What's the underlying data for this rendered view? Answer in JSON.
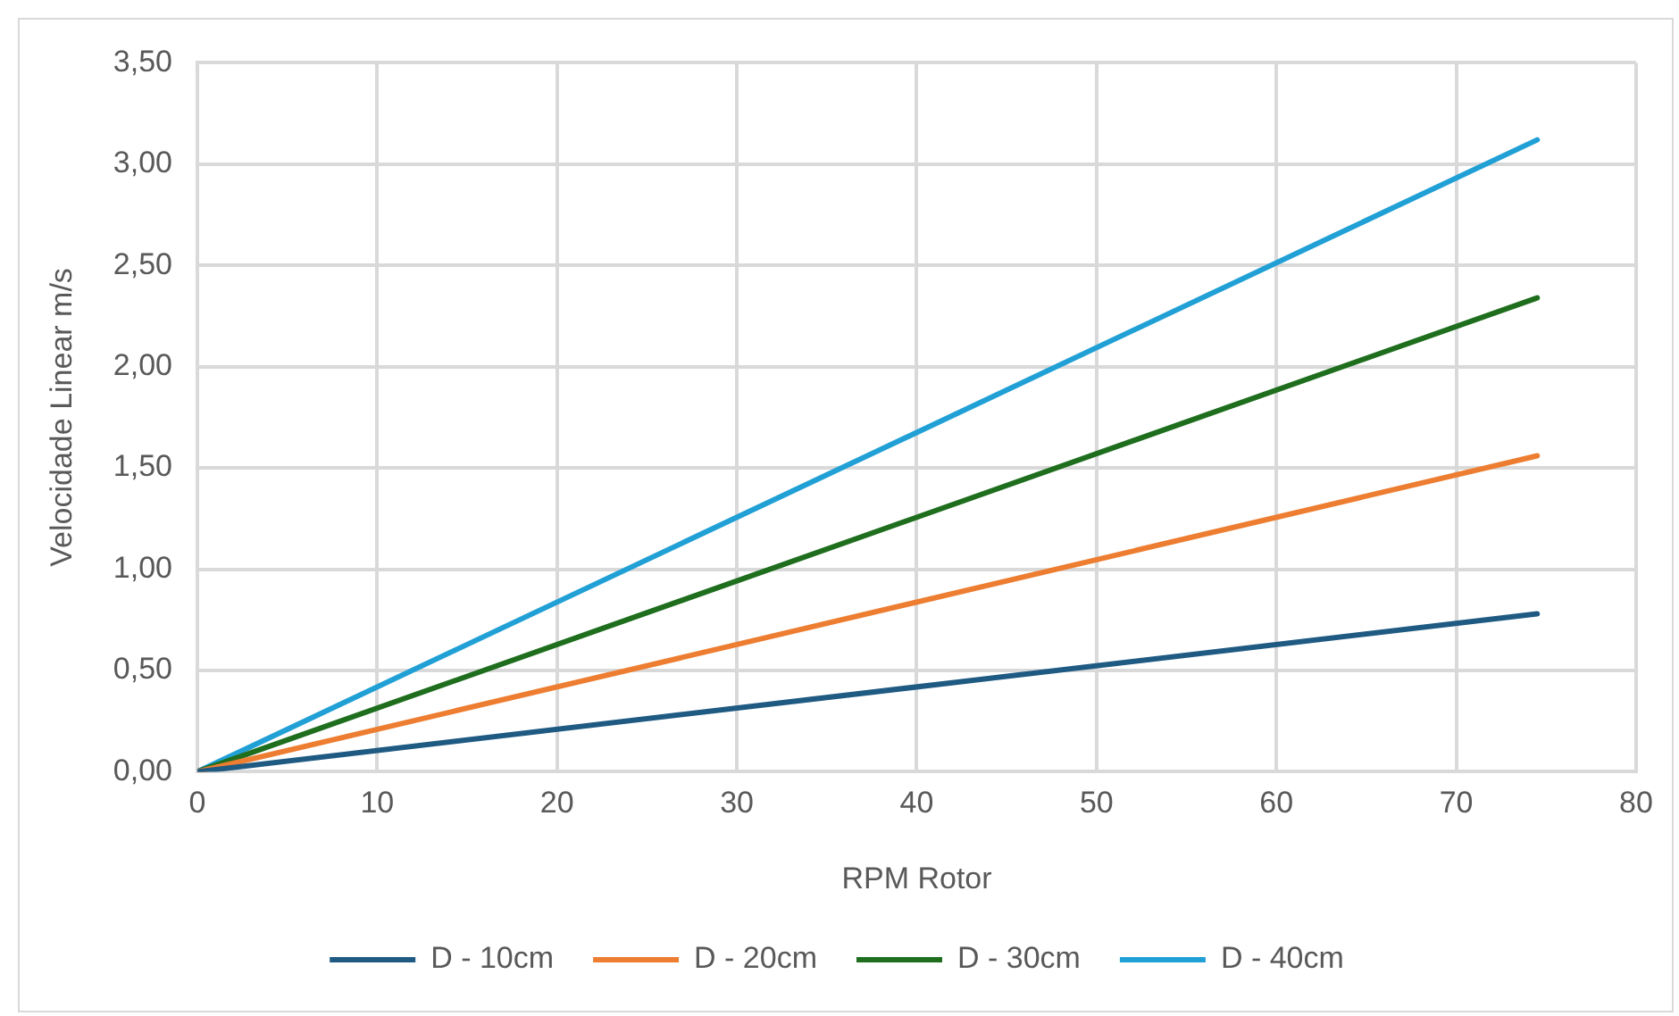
{
  "chart_data": {
    "type": "line",
    "xlabel": "RPM Rotor",
    "ylabel": "Velocidade Linear m/s",
    "x": [
      0,
      74.5
    ],
    "series": [
      {
        "name": "D - 10cm",
        "color": "#1f5a82",
        "values": [
          0,
          0.78
        ]
      },
      {
        "name": "D - 20cm",
        "color": "#ed7d31",
        "values": [
          0,
          1.56
        ]
      },
      {
        "name": "D - 30cm",
        "color": "#1e6e1e",
        "values": [
          0,
          2.34
        ]
      },
      {
        "name": "D - 40cm",
        "color": "#21a0d6",
        "values": [
          0,
          3.12
        ]
      }
    ],
    "xlim": [
      0,
      80
    ],
    "xticks": [
      0,
      10,
      20,
      30,
      40,
      50,
      60,
      70,
      80
    ],
    "ylim": [
      0,
      3.5
    ],
    "yticks": [
      {
        "value": 0,
        "label": "0,00"
      },
      {
        "value": 0.5,
        "label": "0,50"
      },
      {
        "value": 1,
        "label": "1,00"
      },
      {
        "value": 1.5,
        "label": "1,50"
      },
      {
        "value": 2,
        "label": "2,00"
      },
      {
        "value": 2.5,
        "label": "2,50"
      },
      {
        "value": 3,
        "label": "3,00"
      },
      {
        "value": 3.5,
        "label": "3,50"
      }
    ],
    "grid": true,
    "legend": "bottom",
    "marker": "none",
    "line_style": "solid"
  }
}
